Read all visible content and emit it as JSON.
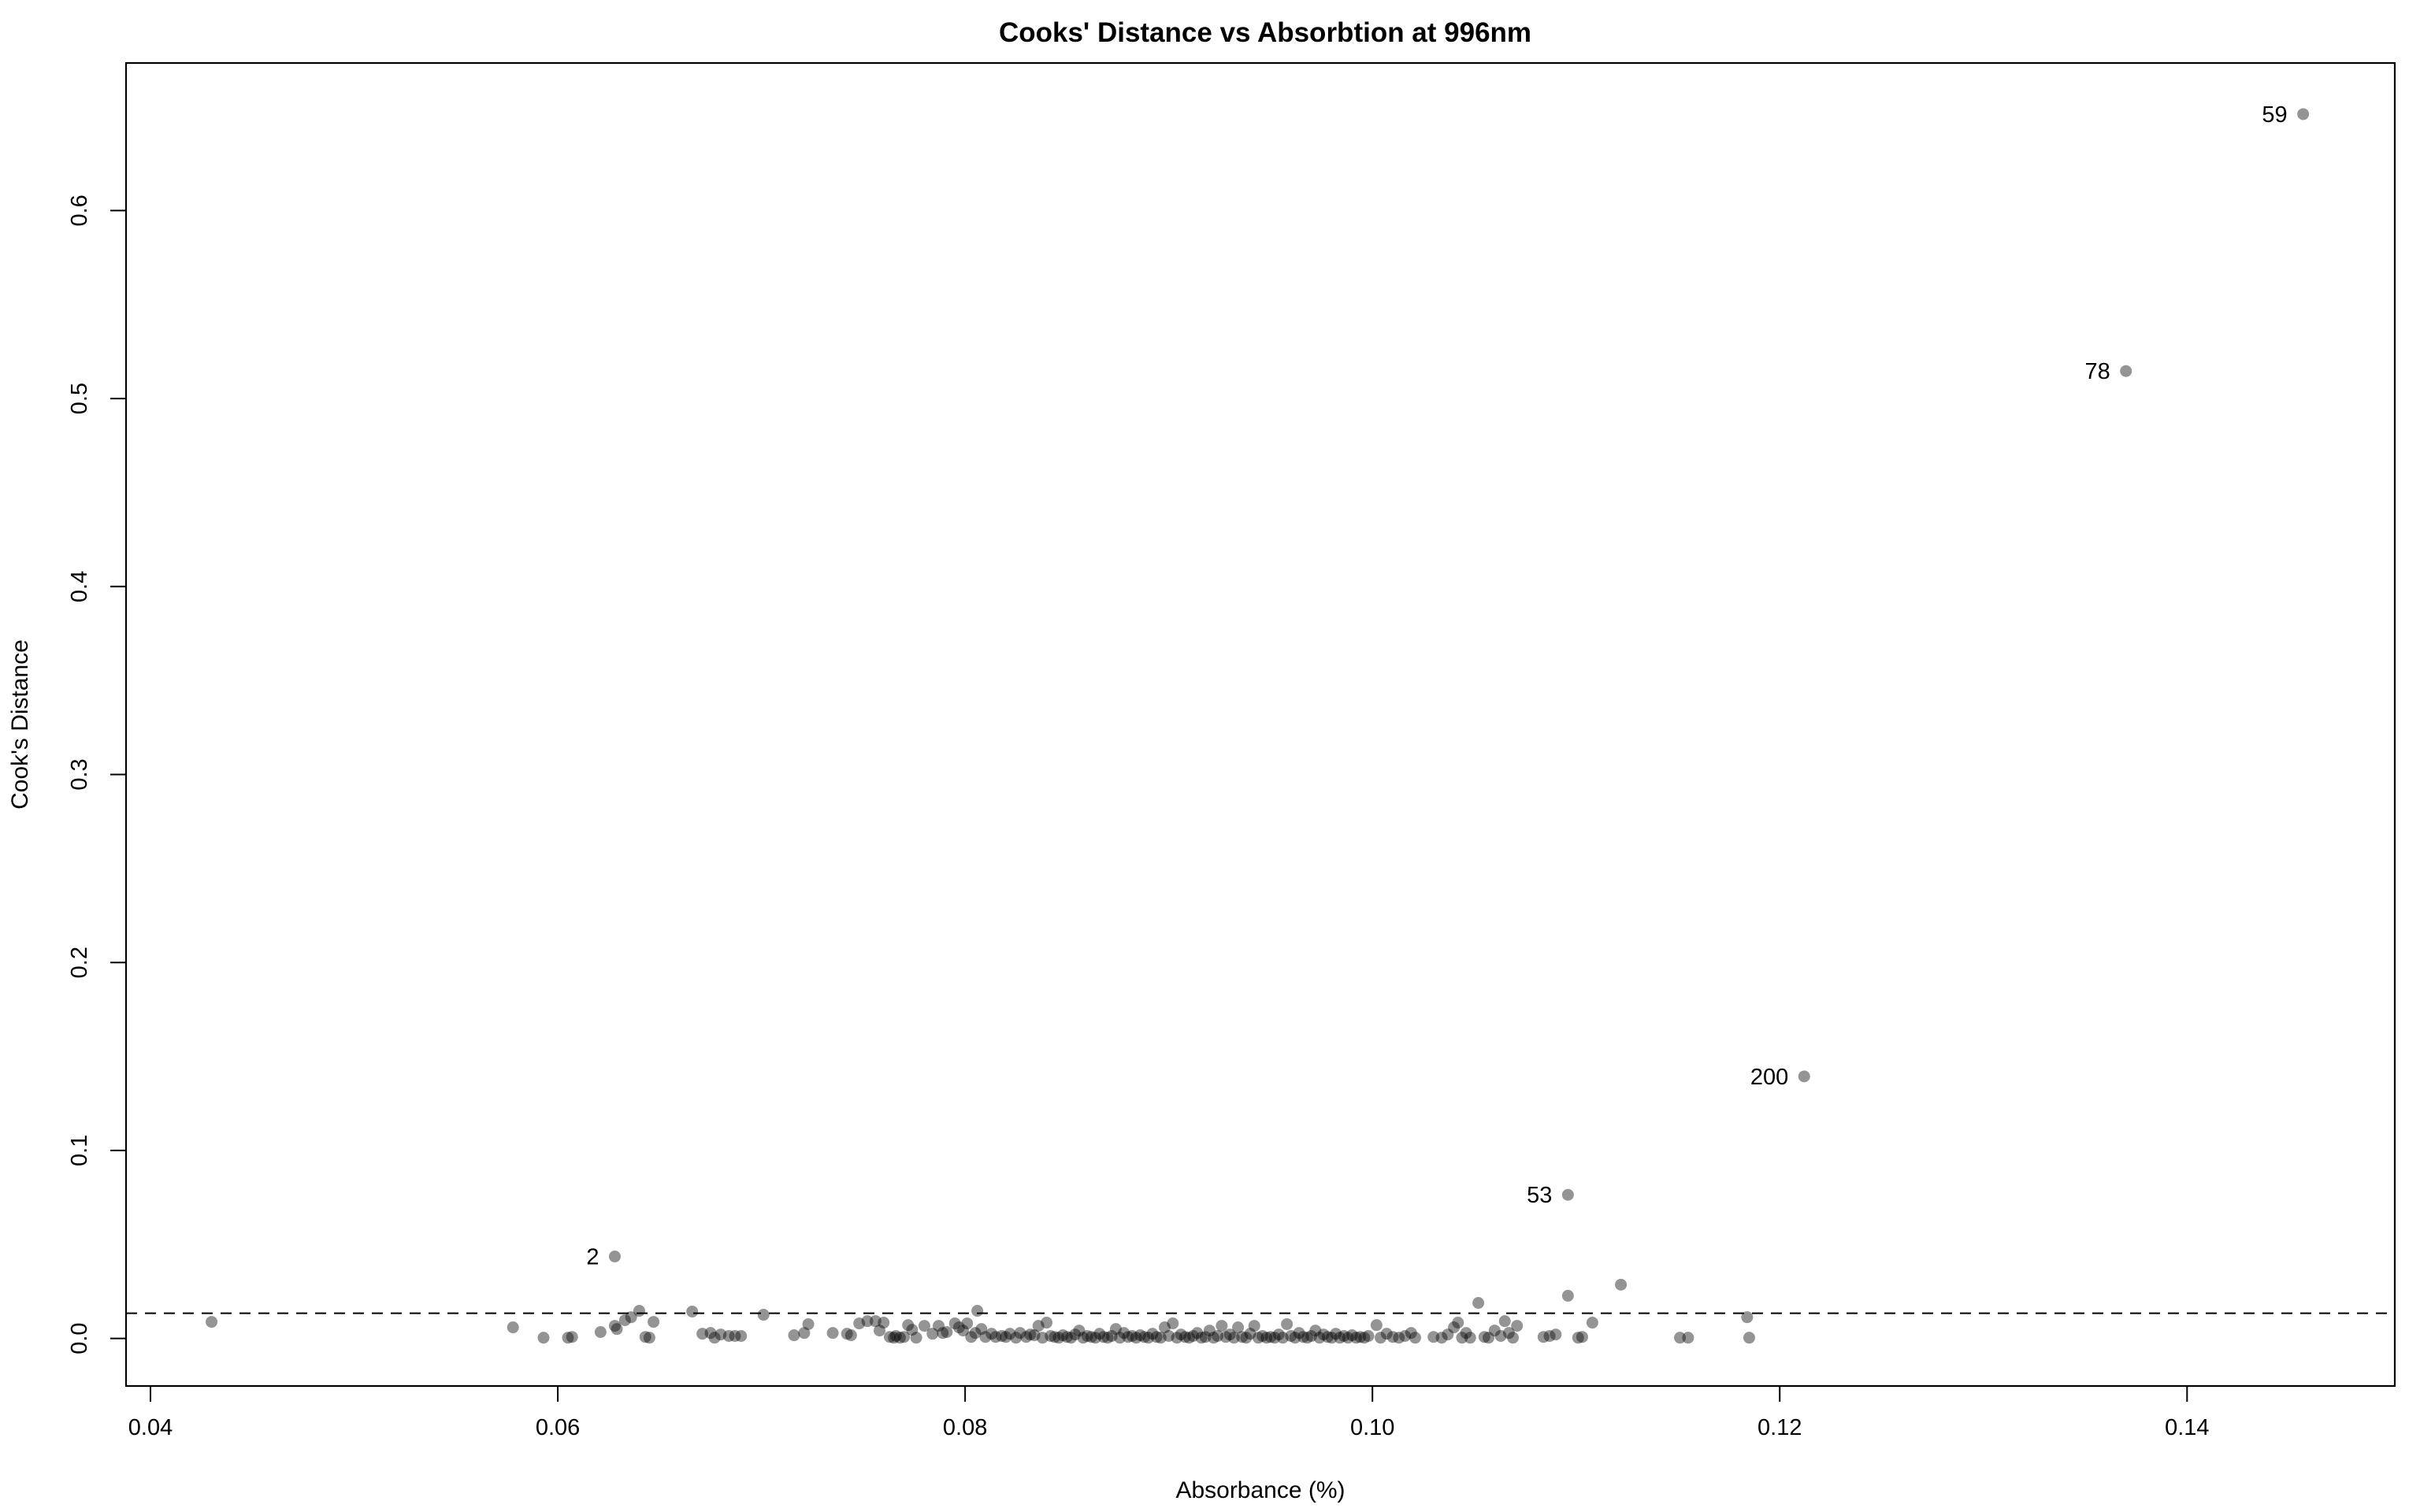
{
  "chart_data": {
    "type": "scatter",
    "title": "Cooks' Distance vs Absorbtion at 996nm",
    "xlabel": "Absorbance (%)",
    "ylabel": "Cook's Distance",
    "xlim": [
      0.0388,
      0.1502
    ],
    "ylim": [
      -0.0253,
      0.6785
    ],
    "xticks": [
      "0.04",
      "0.06",
      "0.08",
      "0.10",
      "0.12",
      "0.14"
    ],
    "yticks": [
      "0.0",
      "0.1",
      "0.2",
      "0.3",
      "0.4",
      "0.5",
      "0.6"
    ],
    "grid": false,
    "legend": "none",
    "threshold_line": {
      "y": 0.0134,
      "style": "dashed"
    },
    "point_color": "#000000",
    "point_opacity": 0.42,
    "labeled_points": [
      {
        "label": "59",
        "x": 0.1457,
        "y": 0.6513
      },
      {
        "label": "78",
        "x": 0.137,
        "y": 0.5146
      },
      {
        "label": "200",
        "x": 0.1212,
        "y": 0.1394
      },
      {
        "label": "53",
        "x": 0.1096,
        "y": 0.0764
      },
      {
        "label": "2",
        "x": 0.0628,
        "y": 0.0436
      }
    ],
    "points": [
      [
        0.043,
        0.0088
      ],
      [
        0.0578,
        0.0059
      ],
      [
        0.0593,
        0.0004
      ],
      [
        0.0605,
        0.0004
      ],
      [
        0.0607,
        0.0008
      ],
      [
        0.0621,
        0.0034
      ],
      [
        0.0628,
        0.0067
      ],
      [
        0.0629,
        0.005
      ],
      [
        0.0633,
        0.0097
      ],
      [
        0.0636,
        0.0113
      ],
      [
        0.064,
        0.0147
      ],
      [
        0.0643,
        0.0008
      ],
      [
        0.0645,
        0.0004
      ],
      [
        0.0647,
        0.0088
      ],
      [
        0.0666,
        0.0143
      ],
      [
        0.0671,
        0.0025
      ],
      [
        0.0675,
        0.0029
      ],
      [
        0.0677,
        0.0004
      ],
      [
        0.068,
        0.0021
      ],
      [
        0.0684,
        0.0013
      ],
      [
        0.0687,
        0.0013
      ],
      [
        0.069,
        0.0013
      ],
      [
        0.0701,
        0.0126
      ],
      [
        0.0716,
        0.0017
      ],
      [
        0.0721,
        0.0029
      ],
      [
        0.0723,
        0.0076
      ],
      [
        0.0735,
        0.0029
      ],
      [
        0.0742,
        0.0025
      ],
      [
        0.0744,
        0.0017
      ],
      [
        0.0748,
        0.008
      ],
      [
        0.0752,
        0.0092
      ],
      [
        0.0756,
        0.0092
      ],
      [
        0.0758,
        0.0042
      ],
      [
        0.076,
        0.0084
      ],
      [
        0.0763,
        0.0008
      ],
      [
        0.0765,
        0.0004
      ],
      [
        0.0766,
        0.0013
      ],
      [
        0.0768,
        0.0004
      ],
      [
        0.077,
        0.0008
      ],
      [
        0.0772,
        0.0071
      ],
      [
        0.0774,
        0.0046
      ],
      [
        0.0776,
        0.0004
      ],
      [
        0.078,
        0.0067
      ],
      [
        0.0784,
        0.0025
      ],
      [
        0.0787,
        0.0067
      ],
      [
        0.0789,
        0.0029
      ],
      [
        0.0791,
        0.0034
      ],
      [
        0.0795,
        0.008
      ],
      [
        0.0797,
        0.0059
      ],
      [
        0.0799,
        0.0042
      ],
      [
        0.0801,
        0.008
      ],
      [
        0.0803,
        0.0008
      ],
      [
        0.0805,
        0.0029
      ],
      [
        0.0806,
        0.0147
      ],
      [
        0.0808,
        0.005
      ],
      [
        0.081,
        0.0008
      ],
      [
        0.0813,
        0.0025
      ],
      [
        0.0815,
        0.0008
      ],
      [
        0.0818,
        0.0013
      ],
      [
        0.082,
        0.0008
      ],
      [
        0.0822,
        0.0025
      ],
      [
        0.0825,
        0.0004
      ],
      [
        0.0827,
        0.0029
      ],
      [
        0.083,
        0.0008
      ],
      [
        0.0832,
        0.0021
      ],
      [
        0.0834,
        0.0017
      ],
      [
        0.0836,
        0.0067
      ],
      [
        0.0838,
        0.0004
      ],
      [
        0.084,
        0.0084
      ],
      [
        0.0842,
        0.0013
      ],
      [
        0.0844,
        0.0008
      ],
      [
        0.0846,
        0.0004
      ],
      [
        0.0848,
        0.0017
      ],
      [
        0.085,
        0.0008
      ],
      [
        0.0852,
        0.0004
      ],
      [
        0.0854,
        0.0021
      ],
      [
        0.0856,
        0.0042
      ],
      [
        0.0858,
        0.0004
      ],
      [
        0.086,
        0.0013
      ],
      [
        0.0862,
        0.0008
      ],
      [
        0.0864,
        0.0004
      ],
      [
        0.0866,
        0.0025
      ],
      [
        0.0868,
        0.0008
      ],
      [
        0.087,
        0.0004
      ],
      [
        0.0872,
        0.0013
      ],
      [
        0.0874,
        0.005
      ],
      [
        0.0876,
        0.0004
      ],
      [
        0.0878,
        0.0029
      ],
      [
        0.088,
        0.0008
      ],
      [
        0.0882,
        0.0013
      ],
      [
        0.0884,
        0.0004
      ],
      [
        0.0886,
        0.0017
      ],
      [
        0.0888,
        0.0008
      ],
      [
        0.089,
        0.0004
      ],
      [
        0.0892,
        0.0025
      ],
      [
        0.0894,
        0.0008
      ],
      [
        0.0896,
        0.0004
      ],
      [
        0.0898,
        0.0059
      ],
      [
        0.09,
        0.0013
      ],
      [
        0.0902,
        0.008
      ],
      [
        0.0904,
        0.0004
      ],
      [
        0.0906,
        0.0021
      ],
      [
        0.0908,
        0.0008
      ],
      [
        0.091,
        0.0004
      ],
      [
        0.0912,
        0.0013
      ],
      [
        0.0914,
        0.0029
      ],
      [
        0.0916,
        0.0004
      ],
      [
        0.0918,
        0.0008
      ],
      [
        0.092,
        0.0042
      ],
      [
        0.0922,
        0.0004
      ],
      [
        0.0924,
        0.0013
      ],
      [
        0.0926,
        0.0067
      ],
      [
        0.0928,
        0.0008
      ],
      [
        0.093,
        0.0021
      ],
      [
        0.0932,
        0.0004
      ],
      [
        0.0934,
        0.0059
      ],
      [
        0.0936,
        0.0008
      ],
      [
        0.0938,
        0.0004
      ],
      [
        0.094,
        0.0025
      ],
      [
        0.0942,
        0.0067
      ],
      [
        0.0944,
        0.0004
      ],
      [
        0.0946,
        0.0013
      ],
      [
        0.0948,
        0.0004
      ],
      [
        0.095,
        0.0008
      ],
      [
        0.0952,
        0.0004
      ],
      [
        0.0954,
        0.0021
      ],
      [
        0.0956,
        0.0004
      ],
      [
        0.0958,
        0.0076
      ],
      [
        0.096,
        0.0013
      ],
      [
        0.0962,
        0.0004
      ],
      [
        0.0964,
        0.0029
      ],
      [
        0.0966,
        0.0008
      ],
      [
        0.0968,
        0.0004
      ],
      [
        0.097,
        0.0013
      ],
      [
        0.0972,
        0.0042
      ],
      [
        0.0974,
        0.0004
      ],
      [
        0.0976,
        0.0021
      ],
      [
        0.0978,
        0.0008
      ],
      [
        0.098,
        0.0004
      ],
      [
        0.0982,
        0.0025
      ],
      [
        0.0984,
        0.0004
      ],
      [
        0.0986,
        0.0013
      ],
      [
        0.0988,
        0.0004
      ],
      [
        0.099,
        0.0017
      ],
      [
        0.0992,
        0.0004
      ],
      [
        0.0994,
        0.0008
      ],
      [
        0.0996,
        0.0004
      ],
      [
        0.0998,
        0.0013
      ],
      [
        0.1002,
        0.0071
      ],
      [
        0.1004,
        0.0004
      ],
      [
        0.1007,
        0.0025
      ],
      [
        0.101,
        0.0008
      ],
      [
        0.1013,
        0.0004
      ],
      [
        0.1016,
        0.0013
      ],
      [
        0.1019,
        0.0029
      ],
      [
        0.1021,
        0.0004
      ],
      [
        0.103,
        0.0008
      ],
      [
        0.1034,
        0.0004
      ],
      [
        0.1037,
        0.0021
      ],
      [
        0.104,
        0.0059
      ],
      [
        0.1042,
        0.0084
      ],
      [
        0.1044,
        0.0004
      ],
      [
        0.1046,
        0.0029
      ],
      [
        0.1048,
        0.0004
      ],
      [
        0.1052,
        0.0189
      ],
      [
        0.1055,
        0.0008
      ],
      [
        0.1057,
        0.0004
      ],
      [
        0.106,
        0.0042
      ],
      [
        0.1063,
        0.0013
      ],
      [
        0.1065,
        0.0092
      ],
      [
        0.1067,
        0.0029
      ],
      [
        0.1069,
        0.0004
      ],
      [
        0.1071,
        0.0067
      ],
      [
        0.1084,
        0.0008
      ],
      [
        0.1087,
        0.0013
      ],
      [
        0.109,
        0.0021
      ],
      [
        0.1096,
        0.0227
      ],
      [
        0.1101,
        0.0004
      ],
      [
        0.1103,
        0.0008
      ],
      [
        0.1108,
        0.0084
      ],
      [
        0.1122,
        0.0286
      ],
      [
        0.1151,
        0.0004
      ],
      [
        0.1155,
        0.0004
      ],
      [
        0.1184,
        0.0113
      ],
      [
        0.1185,
        0.0004
      ]
    ]
  }
}
